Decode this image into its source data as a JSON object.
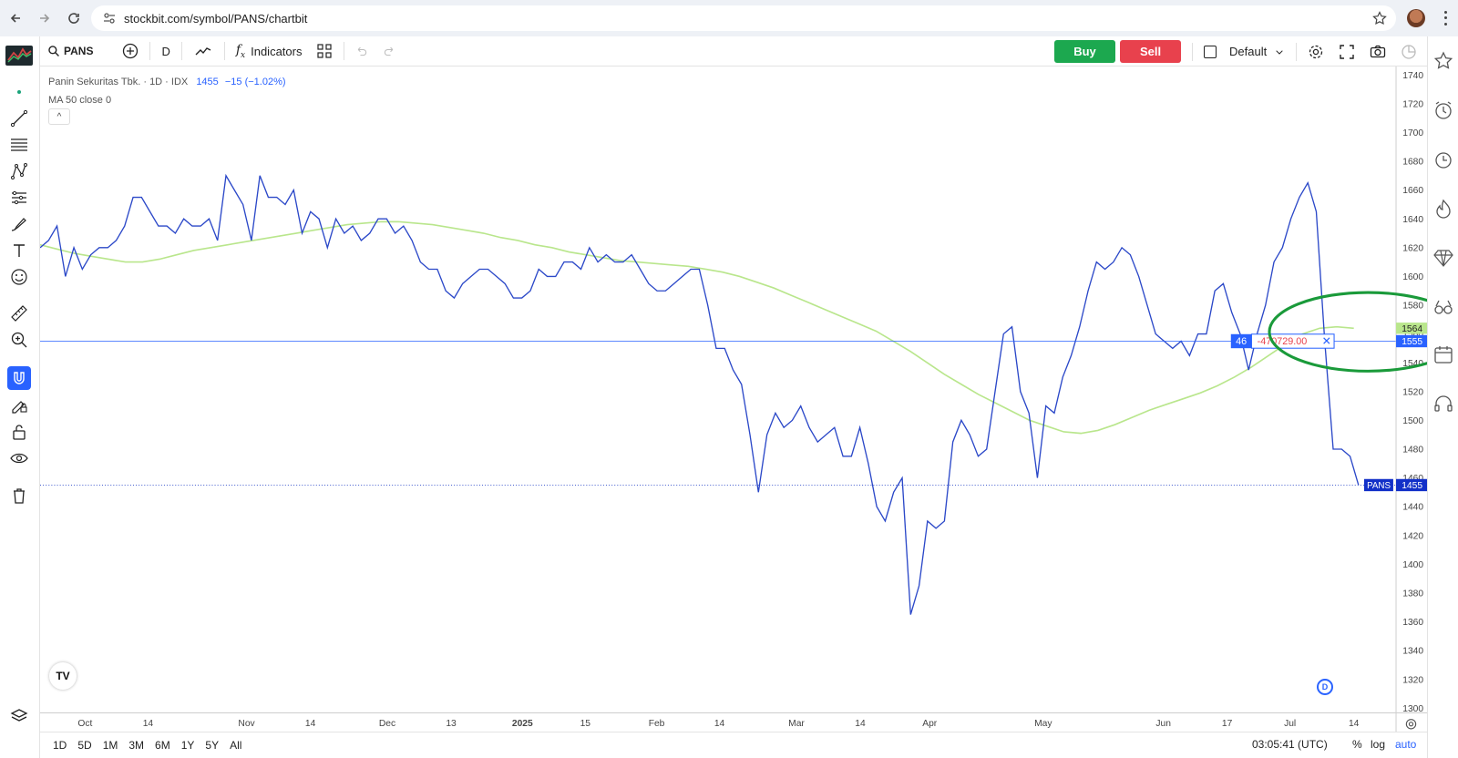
{
  "browser": {
    "url": "stockbit.com/symbol/PANS/chartbit"
  },
  "toolbar": {
    "symbol": "PANS",
    "interval": "D",
    "indicators_label": "Indicators",
    "buy_label": "Buy",
    "sell_label": "Sell",
    "layout_label": "Default"
  },
  "legend": {
    "title": "Panin Sekuritas Tbk. · 1D · IDX",
    "price": "1455",
    "change": "−15 (−1.02%)",
    "ma_label": "MA 50 close 0"
  },
  "price_axis": {
    "ticks": [
      "1740",
      "1720",
      "1700",
      "1680",
      "1660",
      "1640",
      "1620",
      "1600",
      "1580",
      "1560",
      "1540",
      "1520",
      "1500",
      "1480",
      "1460",
      "1440",
      "1420",
      "1400",
      "1380",
      "1360",
      "1340",
      "1320",
      "1300"
    ],
    "ma_badge": "1564",
    "crosshair_badge": "1555",
    "last_badge": "1455",
    "last_symbol": "PANS"
  },
  "time_axis": {
    "labels": [
      "Oct",
      "14",
      "Nov",
      "14",
      "Dec",
      "13",
      "2025",
      "15",
      "Feb",
      "14",
      "Mar",
      "14",
      "Apr",
      "May",
      "Jun",
      "17",
      "Jul",
      "14"
    ]
  },
  "order_line": {
    "qty": "46",
    "value": "-470729.00"
  },
  "bottom": {
    "ranges": [
      "1D",
      "5D",
      "1M",
      "3M",
      "6M",
      "1Y",
      "5Y",
      "All"
    ],
    "clock": "03:05:41 (UTC)",
    "pct": "%",
    "log": "log",
    "auto": "auto"
  },
  "tv_logo_text": "TV",
  "d_badge": "D",
  "colors": {
    "price_line": "#2b48c8",
    "ma_line": "#b9e68c",
    "annotation": "#1a9a3a",
    "buy": "#1ca84f",
    "sell": "#e8414d"
  },
  "chart_data": {
    "type": "line",
    "y_range": [
      1300,
      1740
    ],
    "series": [
      {
        "name": "PANS",
        "values": [
          1620,
          1625,
          1635,
          1600,
          1620,
          1605,
          1615,
          1620,
          1620,
          1625,
          1635,
          1655,
          1655,
          1645,
          1635,
          1635,
          1630,
          1640,
          1635,
          1635,
          1640,
          1625,
          1670,
          1660,
          1650,
          1625,
          1670,
          1655,
          1655,
          1650,
          1660,
          1630,
          1645,
          1640,
          1620,
          1640,
          1630,
          1635,
          1625,
          1630,
          1640,
          1640,
          1630,
          1635,
          1625,
          1610,
          1605,
          1605,
          1590,
          1585,
          1595,
          1600,
          1605,
          1605,
          1600,
          1595,
          1585,
          1585,
          1590,
          1605,
          1600,
          1600,
          1610,
          1610,
          1605,
          1620,
          1610,
          1615,
          1610,
          1610,
          1615,
          1605,
          1595,
          1590,
          1590,
          1595,
          1600,
          1605,
          1605,
          1580,
          1550,
          1550,
          1535,
          1525,
          1490,
          1450,
          1490,
          1505,
          1495,
          1500,
          1510,
          1495,
          1485,
          1490,
          1495,
          1475,
          1475,
          1495,
          1470,
          1440,
          1430,
          1450,
          1460,
          1365,
          1385,
          1430,
          1425,
          1430,
          1485,
          1500,
          1490,
          1475,
          1480,
          1520,
          1560,
          1565,
          1520,
          1505,
          1460,
          1510,
          1505,
          1530,
          1545,
          1565,
          1590,
          1610,
          1605,
          1610,
          1620,
          1615,
          1600,
          1580,
          1560,
          1555,
          1550,
          1555,
          1545,
          1560,
          1560,
          1590,
          1595,
          1575,
          1560,
          1535,
          1560,
          1580,
          1610,
          1620,
          1640,
          1655,
          1665,
          1645,
          1555,
          1480,
          1480,
          1475,
          1455
        ]
      },
      {
        "name": "MA 50",
        "values": [
          1622,
          1619,
          1616,
          1614,
          1612,
          1610,
          1610,
          1612,
          1615,
          1618,
          1620,
          1622,
          1624,
          1626,
          1628,
          1630,
          1632,
          1634,
          1636,
          1637,
          1638,
          1638,
          1637,
          1636,
          1634,
          1632,
          1630,
          1627,
          1625,
          1622,
          1620,
          1617,
          1615,
          1613,
          1611,
          1610,
          1609,
          1608,
          1607,
          1605,
          1603,
          1600,
          1596,
          1592,
          1587,
          1582,
          1577,
          1572,
          1567,
          1562,
          1555,
          1548,
          1540,
          1532,
          1525,
          1518,
          1512,
          1506,
          1500,
          1496,
          1492,
          1491,
          1493,
          1497,
          1502,
          1507,
          1511,
          1515,
          1519,
          1524,
          1530,
          1537,
          1545,
          1553,
          1560,
          1564,
          1565,
          1564
        ]
      }
    ]
  }
}
